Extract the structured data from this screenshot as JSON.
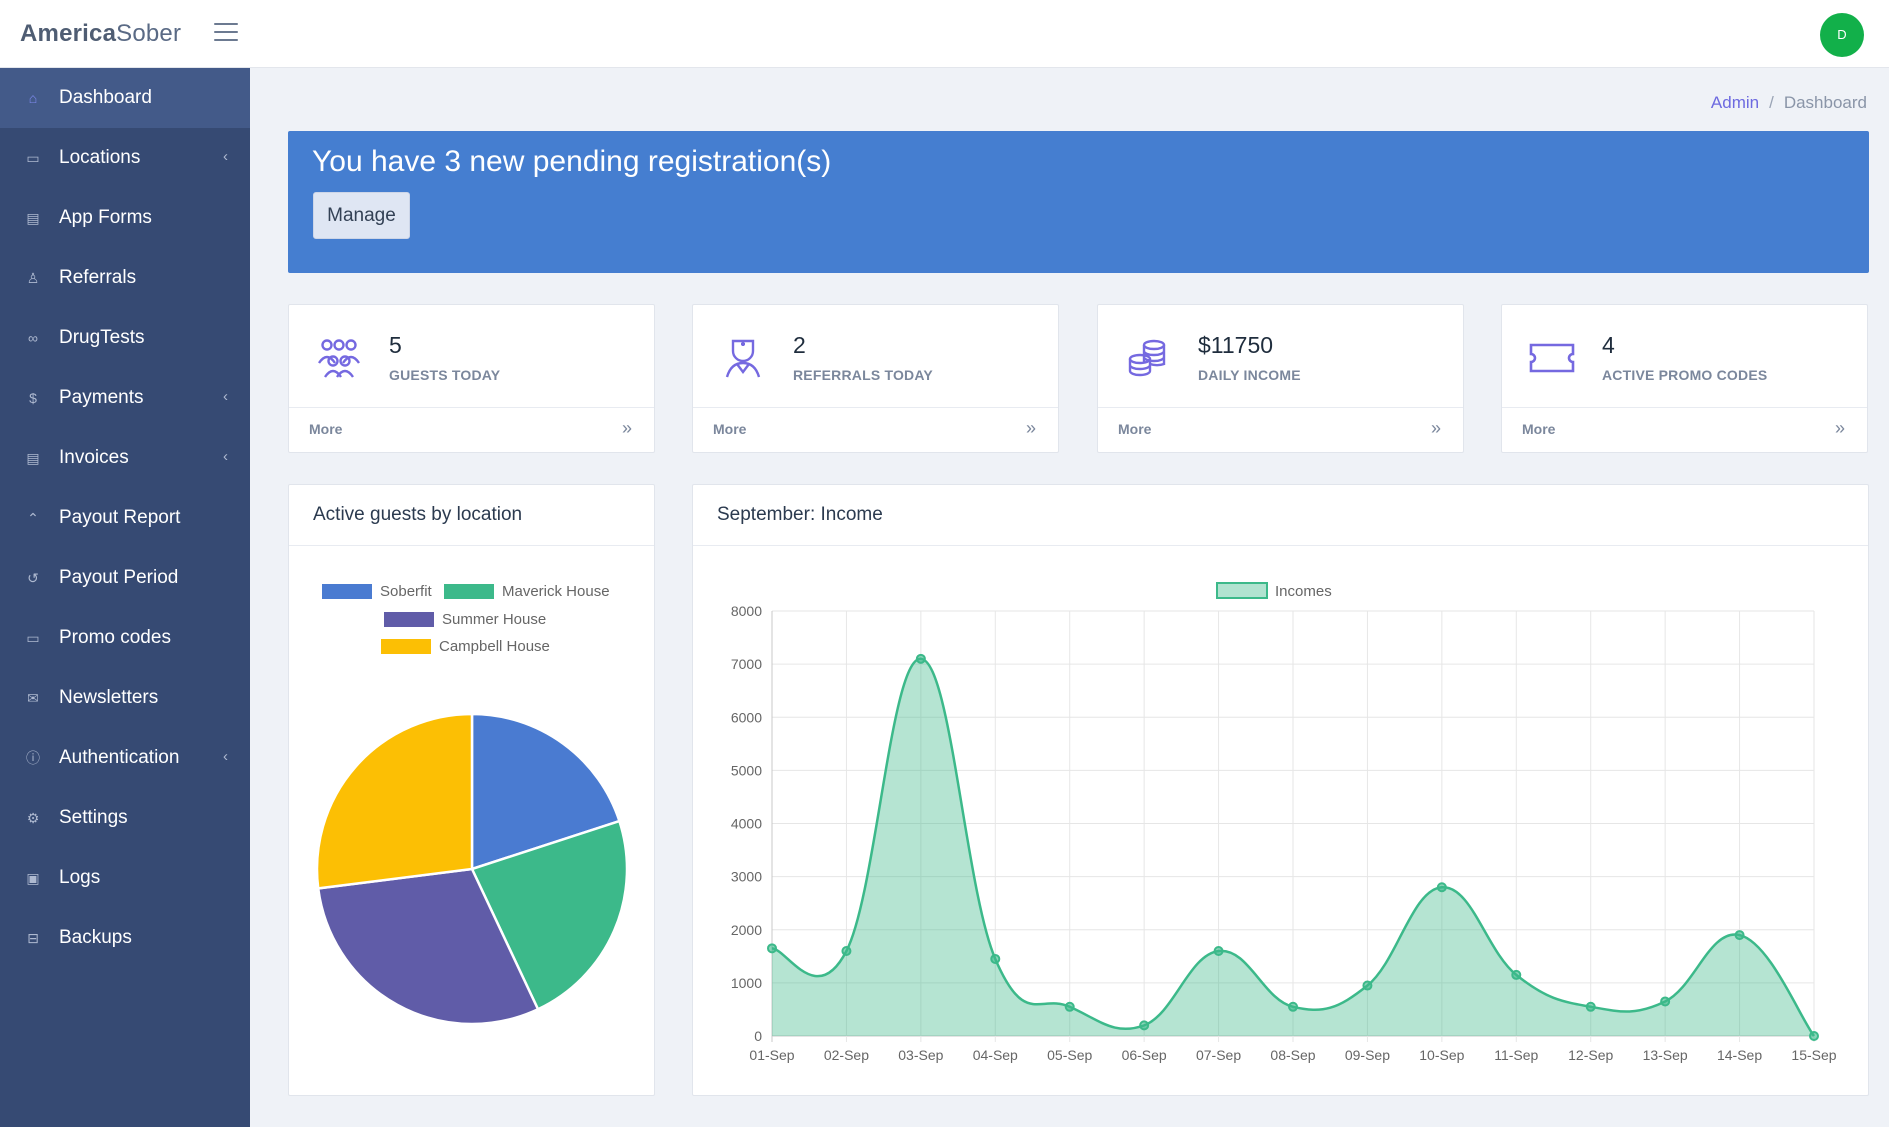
{
  "topbar": {
    "brand_bold": "America",
    "brand_light": "Sober",
    "avatar_initial": "D"
  },
  "sidebar": {
    "items": [
      {
        "label": "Dashboard",
        "icon": "home-icon",
        "active": true,
        "caret": false
      },
      {
        "label": "Locations",
        "icon": "bed-icon",
        "active": false,
        "caret": true
      },
      {
        "label": "App Forms",
        "icon": "file-icon",
        "active": false,
        "caret": false
      },
      {
        "label": "Referrals",
        "icon": "user-icon",
        "active": false,
        "caret": false
      },
      {
        "label": "DrugTests",
        "icon": "flask-icon",
        "active": false,
        "caret": false
      },
      {
        "label": "Payments",
        "icon": "dollar-icon",
        "active": false,
        "caret": true
      },
      {
        "label": "Invoices",
        "icon": "invoice-icon",
        "active": false,
        "caret": true
      },
      {
        "label": "Payout Report",
        "icon": "report-icon",
        "active": false,
        "caret": false
      },
      {
        "label": "Payout Period",
        "icon": "history-icon",
        "active": false,
        "caret": false
      },
      {
        "label": "Promo codes",
        "icon": "ticket-icon",
        "active": false,
        "caret": false
      },
      {
        "label": "Newsletters",
        "icon": "mail-icon",
        "active": false,
        "caret": false
      },
      {
        "label": "Authentication",
        "icon": "info-icon",
        "active": false,
        "caret": true
      },
      {
        "label": "Settings",
        "icon": "gear-icon",
        "active": false,
        "caret": false
      },
      {
        "label": "Logs",
        "icon": "terminal-icon",
        "active": false,
        "caret": false
      },
      {
        "label": "Backups",
        "icon": "drive-icon",
        "active": false,
        "caret": false
      }
    ]
  },
  "breadcrumb": {
    "root": "Admin",
    "separator": "/",
    "current": "Dashboard"
  },
  "banner": {
    "title": "You have 3 new pending registration(s)",
    "button_label": "Manage"
  },
  "stats": [
    {
      "value": "5",
      "label": "GUESTS TODAY",
      "more": "More",
      "icon": "people-icon"
    },
    {
      "value": "2",
      "label": "REFERRALS TODAY",
      "more": "More",
      "icon": "doctor-icon"
    },
    {
      "value": "$11750",
      "label": "DAILY INCOME",
      "more": "More",
      "icon": "coins-icon"
    },
    {
      "value": "4",
      "label": "ACTIVE PROMO CODES",
      "more": "More",
      "icon": "ticket-icon"
    }
  ],
  "colors": {
    "sidebar": "#364a73",
    "banner": "#457ed0",
    "accent_icon": "#7569e0",
    "income": "#3cb98a"
  },
  "panels": {
    "pie_title": "Active guests by location",
    "line_title": "September: Income"
  },
  "chart_data": [
    {
      "type": "pie",
      "title": "",
      "legend_position": "top",
      "series": [
        {
          "name": "Soberfit",
          "value": 20,
          "color": "#4a7bd1"
        },
        {
          "name": "Maverick House",
          "value": 23,
          "color": "#3cb98a"
        },
        {
          "name": "Summer House",
          "value": 30,
          "color": "#605ca8"
        },
        {
          "name": "Campbell House",
          "value": 27,
          "color": "#fcbf04"
        }
      ]
    },
    {
      "type": "area",
      "title": "",
      "legend_position": "top",
      "categories": [
        "01-Sep",
        "02-Sep",
        "03-Sep",
        "04-Sep",
        "05-Sep",
        "06-Sep",
        "07-Sep",
        "08-Sep",
        "09-Sep",
        "10-Sep",
        "11-Sep",
        "12-Sep",
        "13-Sep",
        "14-Sep",
        "15-Sep"
      ],
      "series": [
        {
          "name": "Incomes",
          "values": [
            1650,
            1600,
            7100,
            1450,
            550,
            200,
            1600,
            550,
            950,
            2800,
            1150,
            550,
            650,
            1900,
            0
          ]
        }
      ],
      "ylim": [
        0,
        8000
      ],
      "yticks": [
        0,
        1000,
        2000,
        3000,
        4000,
        5000,
        6000,
        7000,
        8000
      ],
      "grid": true,
      "color": "#3cb98a"
    }
  ]
}
